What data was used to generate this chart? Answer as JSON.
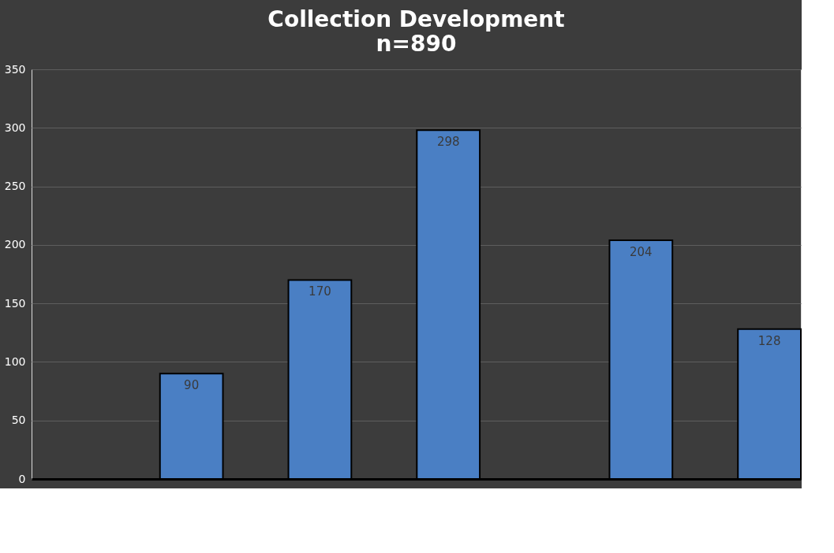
{
  "chart_data": {
    "type": "bar",
    "title": "Collection Development",
    "subtitle": "n=890",
    "categories": [
      null,
      null,
      null,
      null,
      null,
      null,
      null,
      null,
      null,
      null,
      null,
      null
    ],
    "values": [
      null,
      null,
      90,
      null,
      170,
      null,
      298,
      null,
      null,
      204,
      null,
      128
    ],
    "color": "#4a7fc4",
    "ylim": [
      0,
      350
    ],
    "yticks": [
      0,
      50,
      100,
      150,
      200,
      250,
      300,
      350
    ],
    "grid": "y",
    "data_labels": true,
    "tick_labels": "y"
  }
}
